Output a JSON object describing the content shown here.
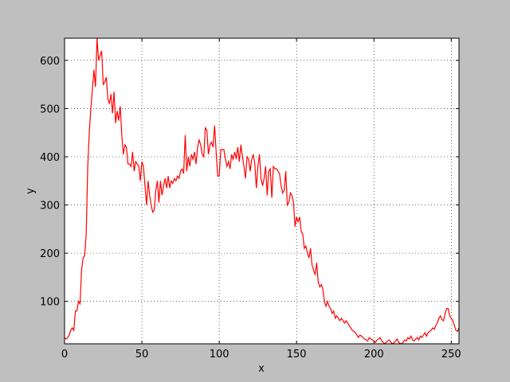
{
  "chart_data": {
    "type": "line",
    "xlabel": "x",
    "ylabel": "y",
    "x": [
      0,
      1,
      2,
      3,
      4,
      5,
      6,
      7,
      8,
      9,
      10,
      11,
      12,
      13,
      14,
      15,
      16,
      17,
      18,
      19,
      20,
      21,
      22,
      23,
      24,
      25,
      26,
      27,
      28,
      29,
      30,
      31,
      32,
      33,
      34,
      35,
      36,
      37,
      38,
      39,
      40,
      41,
      42,
      43,
      44,
      45,
      46,
      47,
      48,
      49,
      50,
      51,
      52,
      53,
      54,
      55,
      56,
      57,
      58,
      59,
      60,
      61,
      62,
      63,
      64,
      65,
      66,
      67,
      68,
      69,
      70,
      71,
      72,
      73,
      74,
      75,
      76,
      77,
      78,
      79,
      80,
      81,
      82,
      83,
      84,
      85,
      86,
      87,
      88,
      89,
      90,
      91,
      92,
      93,
      94,
      95,
      96,
      97,
      98,
      99,
      100,
      101,
      102,
      103,
      104,
      105,
      106,
      107,
      108,
      109,
      110,
      111,
      112,
      113,
      114,
      115,
      116,
      117,
      118,
      119,
      120,
      121,
      122,
      123,
      124,
      125,
      126,
      127,
      128,
      129,
      130,
      131,
      132,
      133,
      134,
      135,
      136,
      137,
      138,
      139,
      140,
      141,
      142,
      143,
      144,
      145,
      146,
      147,
      148,
      149,
      150,
      151,
      152,
      153,
      154,
      155,
      156,
      157,
      158,
      159,
      160,
      161,
      162,
      163,
      164,
      165,
      166,
      167,
      168,
      169,
      170,
      171,
      172,
      173,
      174,
      175,
      176,
      177,
      178,
      179,
      180,
      181,
      182,
      183,
      184,
      185,
      186,
      187,
      188,
      189,
      190,
      191,
      192,
      193,
      194,
      195,
      196,
      197,
      198,
      199,
      200,
      201,
      202,
      203,
      204,
      205,
      206,
      207,
      208,
      209,
      210,
      211,
      212,
      213,
      214,
      215,
      216,
      217,
      218,
      219,
      220,
      221,
      222,
      223,
      224,
      225,
      226,
      227,
      228,
      229,
      230,
      231,
      232,
      233,
      234,
      235,
      236,
      237,
      238,
      239,
      240,
      241,
      242,
      243,
      244,
      245,
      246,
      247,
      248,
      249,
      250,
      251,
      252,
      253,
      254,
      255
    ],
    "series": [
      {
        "color": "#ff0000",
        "values": [
          25,
          22,
          25,
          30,
          40,
          45,
          40,
          80,
          80,
          100,
          95,
          165,
          190,
          195,
          240,
          380,
          450,
          500,
          540,
          580,
          545,
          646,
          600,
          610,
          620,
          550,
          555,
          565,
          520,
          510,
          530,
          490,
          535,
          470,
          495,
          475,
          505,
          445,
          405,
          425,
          420,
          385,
          385,
          380,
          410,
          370,
          390,
          385,
          380,
          350,
          390,
          380,
          340,
          300,
          350,
          320,
          300,
          285,
          290,
          330,
          350,
          305,
          350,
          320,
          340,
          355,
          335,
          360,
          335,
          350,
          345,
          355,
          350,
          360,
          355,
          370,
          375,
          365,
          445,
          370,
          400,
          380,
          405,
          395,
          410,
          385,
          420,
          435,
          425,
          405,
          400,
          460,
          455,
          405,
          425,
          430,
          420,
          465,
          410,
          360,
          360,
          415,
          415,
          415,
          395,
          380,
          390,
          375,
          405,
          395,
          410,
          395,
          420,
          390,
          425,
          400,
          380,
          355,
          400,
          395,
          370,
          395,
          405,
          385,
          335,
          380,
          405,
          355,
          340,
          355,
          380,
          320,
          370,
          375,
          315,
          380,
          375,
          375,
          370,
          365,
          340,
          325,
          330,
          370,
          300,
          305,
          325,
          320,
          305,
          255,
          275,
          265,
          275,
          245,
          240,
          210,
          215,
          200,
          190,
          210,
          175,
          165,
          155,
          180,
          140,
          130,
          135,
          125,
          100,
          90,
          100,
          90,
          85,
          75,
          80,
          65,
          70,
          65,
          60,
          65,
          60,
          55,
          60,
          55,
          50,
          45,
          40,
          38,
          35,
          30,
          25,
          30,
          28,
          25,
          22,
          20,
          18,
          25,
          22,
          20,
          18,
          15,
          20,
          22,
          25,
          18,
          15,
          12,
          15,
          18,
          20,
          15,
          12,
          14,
          18,
          22,
          15,
          13,
          12,
          16,
          20,
          18,
          25,
          22,
          28,
          20,
          18,
          22,
          25,
          20,
          28,
          25,
          30,
          35,
          28,
          35,
          38,
          40,
          45,
          42,
          50,
          55,
          65,
          70,
          62,
          60,
          75,
          85,
          85,
          70,
          65,
          60,
          50,
          40,
          38,
          45
        ]
      }
    ],
    "xlim": [
      0,
      255
    ],
    "ylim": [
      12,
      646
    ],
    "xticks": [
      0,
      50,
      100,
      150,
      200,
      250
    ],
    "yticks": [
      100,
      200,
      300,
      400,
      500,
      600
    ],
    "grid": true
  }
}
